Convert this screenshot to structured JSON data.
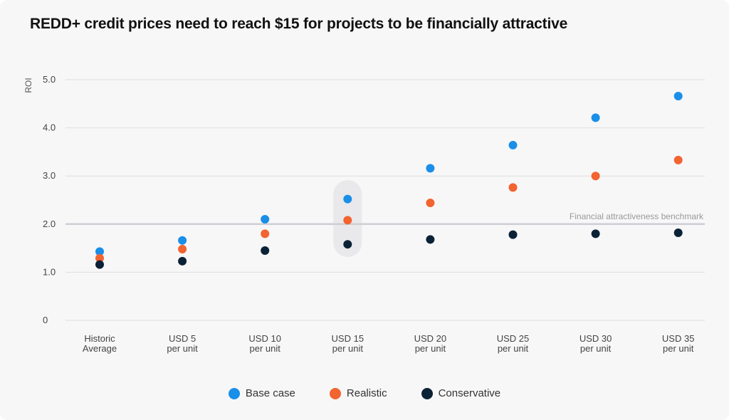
{
  "chart_data": {
    "type": "scatter",
    "title": "REDD+ credit prices need to reach $15 for projects to be financially attractive",
    "ylabel": "ROI",
    "xlabel": "",
    "ylim": [
      0,
      5
    ],
    "yticks": [
      "0",
      "1.0",
      "2.0",
      "3.0",
      "4.0",
      "5.0"
    ],
    "ytick_values": [
      0,
      1,
      2,
      3,
      4,
      5
    ],
    "grid": true,
    "legend_position": "bottom-center",
    "categories": [
      [
        "Historic",
        "Average"
      ],
      [
        "USD 5",
        "per unit"
      ],
      [
        "USD 10",
        "per unit"
      ],
      [
        "USD 15",
        "per unit"
      ],
      [
        "USD 20",
        "per unit"
      ],
      [
        "USD 25",
        "per unit"
      ],
      [
        "USD 30",
        "per unit"
      ],
      [
        "USD 35",
        "per unit"
      ]
    ],
    "highlighted_category": "USD 15 per unit",
    "benchmark": {
      "value": 2.0,
      "label": "Financial attractiveness benchmark"
    },
    "series": [
      {
        "name": "Base case",
        "color": "#1a8fe8",
        "values": [
          1.43,
          1.66,
          2.1,
          2.52,
          3.16,
          3.64,
          4.21,
          4.66
        ]
      },
      {
        "name": "Realistic",
        "color": "#f26430",
        "values": [
          1.29,
          1.48,
          1.8,
          2.08,
          2.44,
          2.76,
          3.0,
          3.33
        ]
      },
      {
        "name": "Conservative",
        "color": "#0b2236",
        "values": [
          1.16,
          1.23,
          1.45,
          1.58,
          1.68,
          1.78,
          1.8,
          1.82
        ]
      }
    ]
  }
}
